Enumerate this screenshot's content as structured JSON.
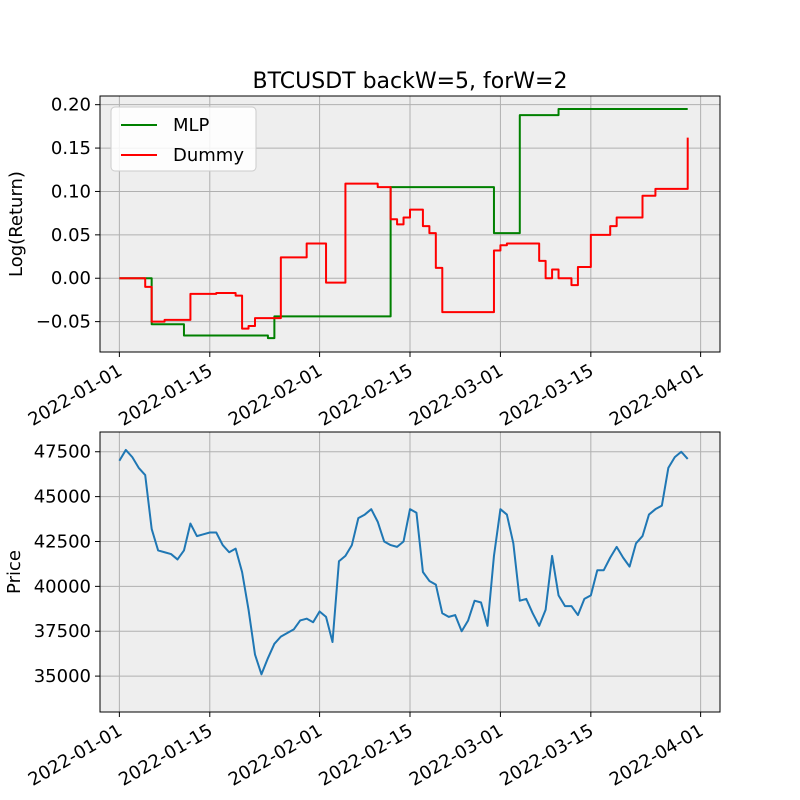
{
  "figure": {
    "background": "#ffffff",
    "axes_background": "#eeeeee",
    "grid_color": "#b0b0b0"
  },
  "chart_data": [
    {
      "type": "line",
      "title": "BTCUSDT backW=5, forW=2",
      "xlabel": "",
      "ylabel": "Log(Return)",
      "x_type": "date",
      "xlim": [
        "2021-12-29",
        "2022-04-04"
      ],
      "ylim": [
        -0.085,
        0.21
      ],
      "x_ticks": [
        "2022-01-01",
        "2022-01-15",
        "2022-02-01",
        "2022-02-15",
        "2022-03-01",
        "2022-03-15",
        "2022-04-01"
      ],
      "y_ticks": [
        -0.05,
        0.0,
        0.05,
        0.1,
        0.15,
        0.2
      ],
      "y_tick_labels": [
        "−0.05",
        "0.00",
        "0.05",
        "0.10",
        "0.15",
        "0.20"
      ],
      "grid": true,
      "legend": "upper-left",
      "series": [
        {
          "name": "MLP",
          "color": "#008000",
          "step": true,
          "x": [
            "2022-01-01",
            "2022-01-05",
            "2022-01-06",
            "2022-01-11",
            "2022-01-24",
            "2022-01-25",
            "2022-02-12",
            "2022-02-28",
            "2022-03-04",
            "2022-03-10",
            "2022-03-30"
          ],
          "y": [
            0.0,
            0.0,
            -0.053,
            -0.066,
            -0.069,
            -0.044,
            0.105,
            0.052,
            0.188,
            0.195,
            0.195
          ]
        },
        {
          "name": "Dummy",
          "color": "#ff0000",
          "step": true,
          "x": [
            "2022-01-01",
            "2022-01-04",
            "2022-01-05",
            "2022-01-06",
            "2022-01-08",
            "2022-01-12",
            "2022-01-16",
            "2022-01-19",
            "2022-01-20",
            "2022-01-21",
            "2022-01-22",
            "2022-01-23",
            "2022-01-26",
            "2022-01-30",
            "2022-02-02",
            "2022-02-05",
            "2022-02-10",
            "2022-02-12",
            "2022-02-13",
            "2022-02-14",
            "2022-02-15",
            "2022-02-17",
            "2022-02-18",
            "2022-02-19",
            "2022-02-20",
            "2022-02-21",
            "2022-02-28",
            "2022-03-01",
            "2022-03-02",
            "2022-03-07",
            "2022-03-08",
            "2022-03-09",
            "2022-03-10",
            "2022-03-12",
            "2022-03-13",
            "2022-03-15",
            "2022-03-18",
            "2022-03-19",
            "2022-03-23",
            "2022-03-25",
            "2022-03-26",
            "2022-03-30"
          ],
          "y": [
            0.0,
            0.0,
            -0.01,
            -0.05,
            -0.048,
            -0.018,
            -0.017,
            -0.02,
            -0.058,
            -0.055,
            -0.046,
            -0.046,
            0.024,
            0.04,
            -0.005,
            0.109,
            0.105,
            0.068,
            0.062,
            0.07,
            0.079,
            0.06,
            0.052,
            0.012,
            -0.039,
            -0.039,
            0.032,
            0.038,
            0.04,
            0.02,
            0.0,
            0.01,
            0.0,
            -0.008,
            0.013,
            0.05,
            0.06,
            0.07,
            0.095,
            0.103,
            0.103,
            0.162
          ]
        }
      ]
    },
    {
      "type": "line",
      "title": "",
      "xlabel": "",
      "ylabel": "Price",
      "x_type": "date",
      "xlim": [
        "2021-12-29",
        "2022-04-04"
      ],
      "ylim": [
        33000,
        48600
      ],
      "x_ticks": [
        "2022-01-01",
        "2022-01-15",
        "2022-02-01",
        "2022-02-15",
        "2022-03-01",
        "2022-03-15",
        "2022-04-01"
      ],
      "y_ticks": [
        35000,
        37500,
        40000,
        42500,
        45000,
        47500
      ],
      "y_tick_labels": [
        "35000",
        "37500",
        "40000",
        "42500",
        "45000",
        "47500"
      ],
      "grid": true,
      "series": [
        {
          "color": "#1f77b4",
          "x": [
            "2022-01-01",
            "2022-01-02",
            "2022-01-03",
            "2022-01-04",
            "2022-01-05",
            "2022-01-06",
            "2022-01-07",
            "2022-01-08",
            "2022-01-09",
            "2022-01-10",
            "2022-01-11",
            "2022-01-12",
            "2022-01-13",
            "2022-01-14",
            "2022-01-15",
            "2022-01-16",
            "2022-01-17",
            "2022-01-18",
            "2022-01-19",
            "2022-01-20",
            "2022-01-21",
            "2022-01-22",
            "2022-01-23",
            "2022-01-24",
            "2022-01-25",
            "2022-01-26",
            "2022-01-27",
            "2022-01-28",
            "2022-01-29",
            "2022-01-30",
            "2022-01-31",
            "2022-02-01",
            "2022-02-02",
            "2022-02-03",
            "2022-02-04",
            "2022-02-05",
            "2022-02-06",
            "2022-02-07",
            "2022-02-08",
            "2022-02-09",
            "2022-02-10",
            "2022-02-11",
            "2022-02-12",
            "2022-02-13",
            "2022-02-14",
            "2022-02-15",
            "2022-02-16",
            "2022-02-17",
            "2022-02-18",
            "2022-02-19",
            "2022-02-20",
            "2022-02-21",
            "2022-02-22",
            "2022-02-23",
            "2022-02-24",
            "2022-02-25",
            "2022-02-26",
            "2022-02-27",
            "2022-02-28",
            "2022-03-01",
            "2022-03-02",
            "2022-03-03",
            "2022-03-04",
            "2022-03-05",
            "2022-03-06",
            "2022-03-07",
            "2022-03-08",
            "2022-03-09",
            "2022-03-10",
            "2022-03-11",
            "2022-03-12",
            "2022-03-13",
            "2022-03-14",
            "2022-03-15",
            "2022-03-16",
            "2022-03-17",
            "2022-03-18",
            "2022-03-19",
            "2022-03-20",
            "2022-03-21",
            "2022-03-22",
            "2022-03-23",
            "2022-03-24",
            "2022-03-25",
            "2022-03-26",
            "2022-03-27",
            "2022-03-28",
            "2022-03-29",
            "2022-03-30"
          ],
          "y": [
            47000,
            47600,
            47200,
            46600,
            46200,
            43200,
            42000,
            41900,
            41800,
            41500,
            42000,
            43500,
            42800,
            42900,
            43000,
            43000,
            42300,
            41900,
            42100,
            40800,
            38700,
            36200,
            35100,
            36000,
            36800,
            37200,
            37400,
            37600,
            38100,
            38200,
            38000,
            38600,
            38300,
            36900,
            41400,
            41700,
            42300,
            43800,
            44000,
            44300,
            43600,
            42500,
            42300,
            42200,
            42500,
            44300,
            44100,
            40800,
            40300,
            40100,
            38500,
            38300,
            38400,
            37500,
            38100,
            39200,
            39100,
            37800,
            41700,
            44300,
            44000,
            42400,
            39200,
            39300,
            38500,
            37800,
            38700,
            41700,
            39500,
            38900,
            38900,
            38400,
            39300,
            39500,
            40900,
            40900,
            41600,
            42200,
            41600,
            41100,
            42400,
            42800,
            44000,
            44300,
            44500,
            46600,
            47200,
            47500,
            47100
          ]
        }
      ]
    }
  ]
}
